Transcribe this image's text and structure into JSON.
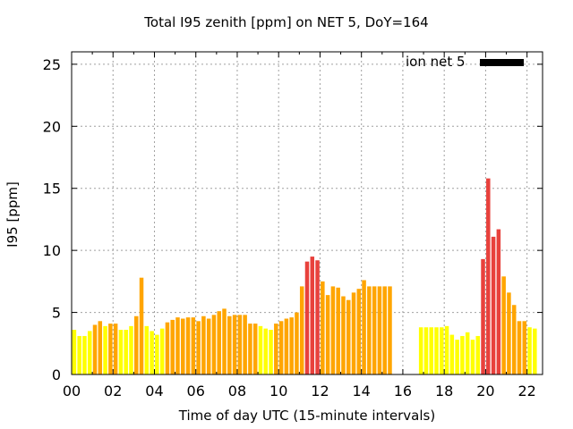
{
  "chart_data": {
    "type": "bar",
    "title": "Total I95 zenith [ppm] on NET 5, DoY=164",
    "xlabel": "Time of day UTC (15-minute intervals)",
    "ylabel": "I95 [ppm]",
    "xlim": [
      0,
      22.75
    ],
    "ylim": [
      0,
      26
    ],
    "x_ticks": [
      "00",
      "02",
      "04",
      "06",
      "08",
      "10",
      "12",
      "14",
      "16",
      "18",
      "20",
      "22"
    ],
    "y_ticks": [
      "0",
      "5",
      "10",
      "15",
      "20",
      "25"
    ],
    "grid": true,
    "legend": {
      "position": "top-right",
      "label": "ion net 5",
      "color": "#000000"
    },
    "bar_colors": {
      "low": "#ffff00",
      "medium": "#ffa500",
      "high": "#e8413c"
    },
    "bars": [
      {
        "t": 0.0,
        "v": 3.6
      },
      {
        "t": 0.25,
        "v": 3.1
      },
      {
        "t": 0.5,
        "v": 3.1
      },
      {
        "t": 0.75,
        "v": 3.5
      },
      {
        "t": 1.0,
        "v": 4.0
      },
      {
        "t": 1.25,
        "v": 4.3
      },
      {
        "t": 1.5,
        "v": 3.9
      },
      {
        "t": 1.75,
        "v": 4.1
      },
      {
        "t": 2.0,
        "v": 4.1
      },
      {
        "t": 2.25,
        "v": 3.6
      },
      {
        "t": 2.5,
        "v": 3.6
      },
      {
        "t": 2.75,
        "v": 3.9
      },
      {
        "t": 3.0,
        "v": 4.7
      },
      {
        "t": 3.25,
        "v": 7.8
      },
      {
        "t": 3.5,
        "v": 3.9
      },
      {
        "t": 3.75,
        "v": 3.5
      },
      {
        "t": 4.0,
        "v": 3.2
      },
      {
        "t": 4.25,
        "v": 3.7
      },
      {
        "t": 4.5,
        "v": 4.2
      },
      {
        "t": 4.75,
        "v": 4.4
      },
      {
        "t": 5.0,
        "v": 4.6
      },
      {
        "t": 5.25,
        "v": 4.5
      },
      {
        "t": 5.5,
        "v": 4.6
      },
      {
        "t": 5.75,
        "v": 4.6
      },
      {
        "t": 6.0,
        "v": 4.3
      },
      {
        "t": 6.25,
        "v": 4.7
      },
      {
        "t": 6.5,
        "v": 4.5
      },
      {
        "t": 6.75,
        "v": 4.8
      },
      {
        "t": 7.0,
        "v": 5.1
      },
      {
        "t": 7.25,
        "v": 5.3
      },
      {
        "t": 7.5,
        "v": 4.7
      },
      {
        "t": 7.75,
        "v": 4.8
      },
      {
        "t": 8.0,
        "v": 4.8
      },
      {
        "t": 8.25,
        "v": 4.8
      },
      {
        "t": 8.5,
        "v": 4.1
      },
      {
        "t": 8.75,
        "v": 4.1
      },
      {
        "t": 9.0,
        "v": 3.9
      },
      {
        "t": 9.25,
        "v": 3.7
      },
      {
        "t": 9.5,
        "v": 3.6
      },
      {
        "t": 9.75,
        "v": 4.1
      },
      {
        "t": 10.0,
        "v": 4.3
      },
      {
        "t": 10.25,
        "v": 4.5
      },
      {
        "t": 10.5,
        "v": 4.6
      },
      {
        "t": 10.75,
        "v": 5.0
      },
      {
        "t": 11.0,
        "v": 7.1
      },
      {
        "t": 11.25,
        "v": 9.1
      },
      {
        "t": 11.5,
        "v": 9.5
      },
      {
        "t": 11.75,
        "v": 9.2
      },
      {
        "t": 12.0,
        "v": 7.5
      },
      {
        "t": 12.25,
        "v": 6.4
      },
      {
        "t": 12.5,
        "v": 7.1
      },
      {
        "t": 12.75,
        "v": 7.0
      },
      {
        "t": 13.0,
        "v": 6.3
      },
      {
        "t": 13.25,
        "v": 6.0
      },
      {
        "t": 13.5,
        "v": 6.6
      },
      {
        "t": 13.75,
        "v": 6.9
      },
      {
        "t": 14.0,
        "v": 7.6
      },
      {
        "t": 14.25,
        "v": 7.1
      },
      {
        "t": 14.5,
        "v": 7.1
      },
      {
        "t": 14.75,
        "v": 7.1
      },
      {
        "t": 15.0,
        "v": 7.1
      },
      {
        "t": 15.25,
        "v": 7.1
      },
      {
        "t": 16.75,
        "v": 3.8
      },
      {
        "t": 17.0,
        "v": 3.8
      },
      {
        "t": 17.25,
        "v": 3.8
      },
      {
        "t": 17.5,
        "v": 3.8
      },
      {
        "t": 17.75,
        "v": 3.8
      },
      {
        "t": 18.0,
        "v": 3.9
      },
      {
        "t": 18.25,
        "v": 3.2
      },
      {
        "t": 18.5,
        "v": 2.8
      },
      {
        "t": 18.75,
        "v": 3.1
      },
      {
        "t": 19.0,
        "v": 3.4
      },
      {
        "t": 19.25,
        "v": 2.8
      },
      {
        "t": 19.5,
        "v": 3.1
      },
      {
        "t": 19.75,
        "v": 9.3
      },
      {
        "t": 20.0,
        "v": 15.8
      },
      {
        "t": 20.25,
        "v": 11.1
      },
      {
        "t": 20.5,
        "v": 11.7
      },
      {
        "t": 20.75,
        "v": 7.9
      },
      {
        "t": 21.0,
        "v": 6.6
      },
      {
        "t": 21.25,
        "v": 5.6
      },
      {
        "t": 21.5,
        "v": 4.3
      },
      {
        "t": 21.75,
        "v": 4.3
      },
      {
        "t": 22.0,
        "v": 3.8
      },
      {
        "t": 22.25,
        "v": 3.7
      }
    ]
  }
}
